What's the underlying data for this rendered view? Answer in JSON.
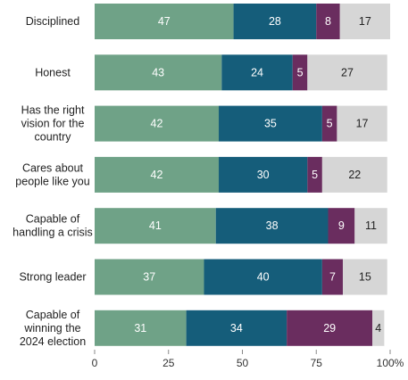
{
  "chart_data": {
    "type": "bar",
    "orientation": "horizontal",
    "stacked": true,
    "categories": [
      "Disciplined",
      "Honest",
      "Has the right vision for the country",
      "Cares about people like you",
      "Capable of handling a crisis",
      "Strong leader",
      "Capable of winning the 2024 election"
    ],
    "category_lines": [
      [
        "Disciplined"
      ],
      [
        "Honest"
      ],
      [
        "Has the right",
        "vision for the",
        "country"
      ],
      [
        "Cares about",
        "people like you"
      ],
      [
        "Capable of",
        "handling a crisis"
      ],
      [
        "Strong leader"
      ],
      [
        "Capable of",
        "winning the",
        "2024 election"
      ]
    ],
    "series": [
      {
        "values": [
          47,
          43,
          42,
          42,
          41,
          37,
          31
        ],
        "color": "#6fa287",
        "label_color": "#ffffff"
      },
      {
        "values": [
          28,
          24,
          35,
          30,
          38,
          40,
          34
        ],
        "color": "#155d7a",
        "label_color": "#ffffff"
      },
      {
        "values": [
          8,
          5,
          5,
          5,
          9,
          7,
          29
        ],
        "color": "#6a2d5f",
        "label_color": "#ffffff"
      },
      {
        "values": [
          17,
          27,
          17,
          22,
          11,
          15,
          4
        ],
        "color": "#d6d6d6",
        "label_color": "#222222"
      }
    ],
    "xlim": [
      0,
      100
    ],
    "xticks": [
      0,
      25,
      50,
      75,
      100
    ],
    "xtick_labels": [
      "0",
      "25",
      "50",
      "75",
      "100%"
    ],
    "grid": false,
    "legend": "none",
    "title": "",
    "xlabel": "",
    "ylabel": ""
  }
}
